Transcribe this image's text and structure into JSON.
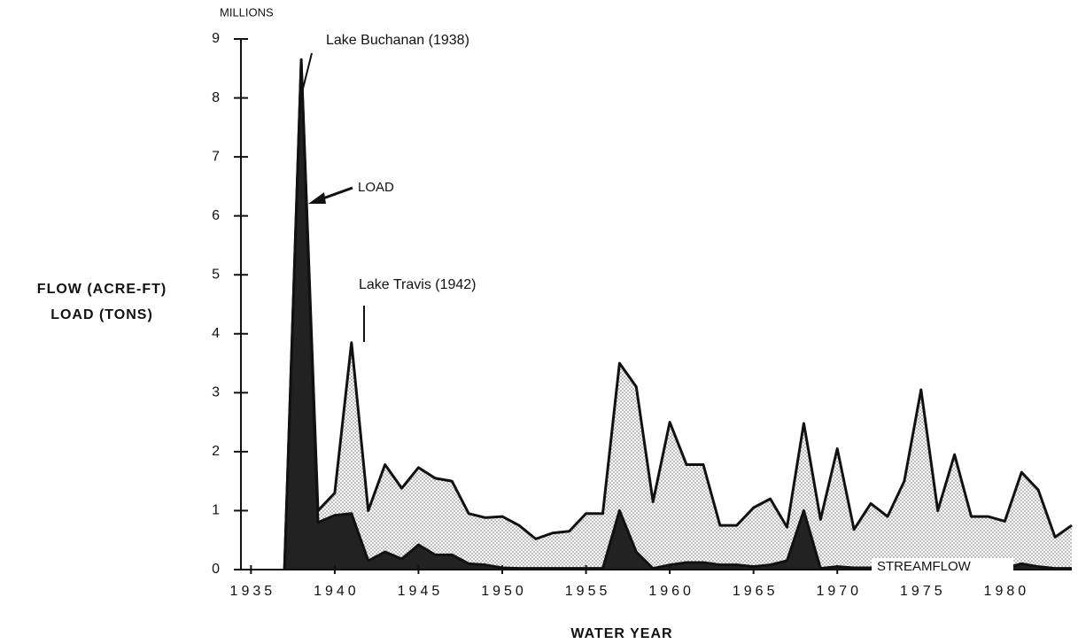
{
  "chart_data": {
    "type": "area",
    "y_unit_label": "MILLIONS",
    "ylabel": [
      "FLOW (ACRE-FT)",
      "LOAD (TONS)"
    ],
    "xlabel": "WATER YEAR",
    "annotations": [
      "Lake Buchanan (1938)",
      "Lake Travis (1942)"
    ],
    "x": [
      1937,
      1938,
      1939,
      1940,
      1941,
      1942,
      1943,
      1944,
      1945,
      1946,
      1947,
      1948,
      1949,
      1950,
      1951,
      1952,
      1953,
      1954,
      1955,
      1956,
      1957,
      1958,
      1959,
      1960,
      1961,
      1962,
      1963,
      1964,
      1965,
      1966,
      1967,
      1968,
      1969,
      1970,
      1971,
      1972,
      1973,
      1974,
      1975,
      1976,
      1977,
      1978,
      1979,
      1980,
      1981,
      1982,
      1983,
      1984
    ],
    "series": [
      {
        "name": "STREAMFLOW",
        "color": "#bdbdbd",
        "values": [
          0,
          8.65,
          1.0,
          1.3,
          3.85,
          1.0,
          1.78,
          1.38,
          1.73,
          1.55,
          1.5,
          0.95,
          0.88,
          0.9,
          0.75,
          0.52,
          0.62,
          0.65,
          0.95,
          0.95,
          3.5,
          3.1,
          1.15,
          2.5,
          1.78,
          1.78,
          0.75,
          0.75,
          1.05,
          1.2,
          0.72,
          2.48,
          0.85,
          2.05,
          0.68,
          1.12,
          0.9,
          1.5,
          3.05,
          1.0,
          1.95,
          0.9,
          0.9,
          0.82,
          1.65,
          1.35,
          0.55,
          0.75
        ]
      },
      {
        "name": "LOAD",
        "color": "#222222",
        "values": [
          0,
          8.6,
          0.8,
          0.92,
          0.95,
          0.15,
          0.3,
          0.18,
          0.42,
          0.25,
          0.25,
          0.1,
          0.08,
          0.03,
          0.02,
          0.02,
          0.02,
          0.02,
          0.02,
          0.02,
          1.0,
          0.3,
          0.02,
          0.08,
          0.12,
          0.12,
          0.08,
          0.08,
          0.05,
          0.08,
          0.15,
          1.0,
          0.02,
          0.05,
          0.03,
          0.03,
          0.03,
          0.03,
          0.05,
          0.05,
          0.05,
          0.05,
          0.03,
          0.02,
          0.1,
          0.05,
          0.02,
          0.02
        ]
      }
    ],
    "xlim": [
      1934.4,
      1984
    ],
    "xticks": [
      1935,
      1940,
      1945,
      1950,
      1955,
      1960,
      1965,
      1970,
      1975,
      1980
    ],
    "ylim": [
      0,
      9
    ],
    "yticks": [
      0,
      1,
      2,
      3,
      4,
      5,
      6,
      7,
      8,
      9
    ]
  }
}
